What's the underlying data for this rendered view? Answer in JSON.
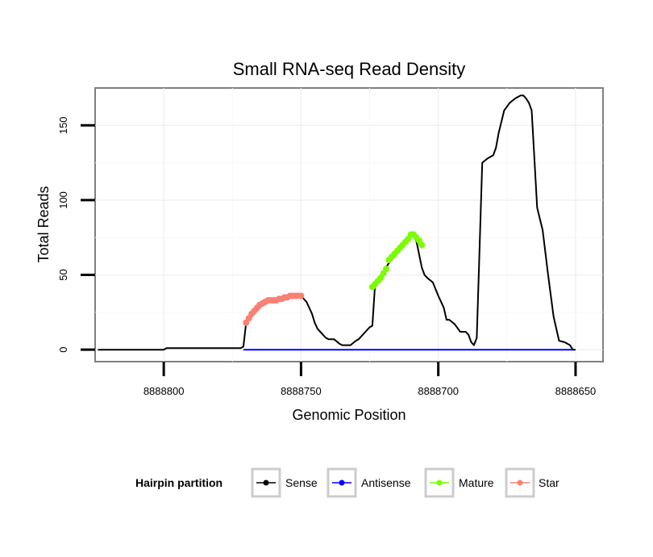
{
  "chart_data": {
    "type": "line",
    "title": "Small RNA-seq Read Density",
    "xlabel": "Genomic Position",
    "ylabel": "Total Reads",
    "xlim": [
      8888825,
      8888640
    ],
    "ylim": [
      -8,
      175
    ],
    "x_reversed": true,
    "xticks": [
      8888800,
      8888750,
      8888700,
      8888650
    ],
    "xtick_labels": [
      "8888800",
      "8888750",
      "8888700",
      "8888650"
    ],
    "yticks": [
      0,
      50,
      100,
      150
    ],
    "ytick_labels": [
      "0",
      "50",
      "100",
      "150"
    ],
    "grid": true,
    "legend": {
      "title": "Hairpin partition",
      "position": "bottom",
      "entries": [
        {
          "name": "Sense",
          "color": "#000000"
        },
        {
          "name": "Antisense",
          "color": "#0000ff"
        },
        {
          "name": "Mature",
          "color": "#7cfc00"
        },
        {
          "name": "Star",
          "color": "#fa8072"
        }
      ]
    },
    "series": [
      {
        "name": "Sense",
        "color": "#000000",
        "markers": false,
        "x": [
          8888824,
          8888800,
          8888799,
          8888772,
          8888771,
          8888770,
          8888768,
          8888766,
          8888764,
          8888762,
          8888760,
          8888758,
          8888756,
          8888755,
          8888754,
          8888752,
          8888750,
          8888748,
          8888746,
          8888745,
          8888744,
          8888742,
          8888741,
          8888740,
          8888738,
          8888736,
          8888735,
          8888734,
          8888732,
          8888730,
          8888729,
          8888728,
          8888727,
          8888726,
          8888725,
          8888724,
          8888723,
          8888722,
          8888720,
          8888718,
          8888716,
          8888714,
          8888712,
          8888710,
          8888709,
          8888708,
          8888706,
          8888705,
          8888704,
          8888702,
          8888700,
          8888698,
          8888697,
          8888696,
          8888694,
          8888692,
          8888690,
          8888689,
          8888688,
          8888687,
          8888686,
          8888684,
          8888682,
          8888680,
          8888679,
          8888678,
          8888676,
          8888674,
          8888672,
          8888670,
          8888669,
          8888668,
          8888667,
          8888666,
          8888664,
          8888662,
          8888660,
          8888658,
          8888656,
          8888654,
          8888652,
          8888651,
          8888650
        ],
        "y": [
          0,
          0,
          1,
          1,
          2,
          18,
          22,
          26,
          30,
          32,
          33,
          33,
          34,
          35,
          36,
          36,
          36,
          32,
          24,
          18,
          14,
          10,
          8,
          7,
          7,
          4,
          3,
          3,
          3,
          6,
          7,
          9,
          11,
          13,
          15,
          16,
          45,
          47,
          52,
          58,
          62,
          67,
          72,
          77,
          76,
          73,
          55,
          50,
          48,
          45,
          36,
          28,
          20,
          20,
          17,
          12,
          12,
          10,
          5,
          3,
          8,
          125,
          128,
          130,
          135,
          145,
          160,
          165,
          168,
          170,
          170,
          168,
          165,
          160,
          95,
          80,
          50,
          22,
          6,
          5,
          3,
          0,
          0
        ]
      },
      {
        "name": "Antisense",
        "color": "#0000ff",
        "markers": false,
        "x": [
          8888771,
          8888651
        ],
        "y": [
          0,
          0
        ]
      },
      {
        "name": "Mature",
        "color": "#7cfc00",
        "markers": true,
        "x": [
          8888724,
          8888723,
          8888722,
          8888721,
          8888720,
          8888719,
          8888718,
          8888717,
          8888716,
          8888715,
          8888714,
          8888713,
          8888712,
          8888711,
          8888710,
          8888709,
          8888708,
          8888707,
          8888706
        ],
        "y": [
          42,
          44,
          46,
          48,
          51,
          54,
          60,
          62,
          64,
          66,
          68,
          70,
          72,
          74,
          77,
          77,
          75,
          73,
          70
        ]
      },
      {
        "name": "Star",
        "color": "#fa8072",
        "markers": true,
        "x": [
          8888770,
          8888769,
          8888768,
          8888767,
          8888766,
          8888765,
          8888764,
          8888763,
          8888762,
          8888761,
          8888760,
          8888759,
          8888758,
          8888757,
          8888756,
          8888755,
          8888754,
          8888753,
          8888752,
          8888751,
          8888750
        ],
        "y": [
          18,
          21,
          24,
          26,
          28,
          30,
          31,
          32,
          33,
          33,
          33,
          33,
          34,
          34,
          35,
          35,
          36,
          36,
          36,
          36,
          36
        ]
      }
    ]
  }
}
